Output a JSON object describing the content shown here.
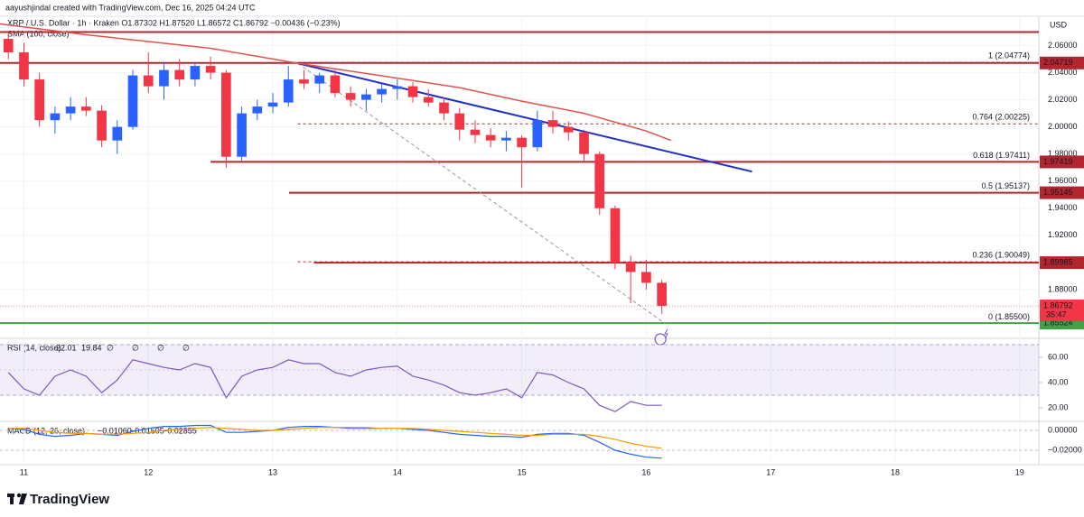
{
  "header": {
    "text": "aayushjindal created with TradingView.com, Dec 16, 2025 04:24 UTC"
  },
  "footer": {
    "brand": "TradingView"
  },
  "chart_data": [
    {
      "type": "candlestick",
      "legend": "XRP / U.S. Dollar · 1h · Kraken  O1.87302 H1.87520 L1.86572 C1.86792 −0.00436 (−0.23%)",
      "indicator": "SMA (100, close)",
      "axis_title": "USD",
      "up_color": "#2962ff",
      "down_color": "#f23645",
      "xlim": [
        10.808,
        19.154
      ],
      "xticks": [
        11,
        12,
        13,
        14,
        15,
        16,
        17,
        18,
        19
      ],
      "ylim": [
        1.846,
        2.075
      ],
      "yticks": [
        {
          "value": 1.88,
          "label": "1.88000"
        },
        {
          "value": 1.9,
          "label": "1.90000"
        },
        {
          "value": 1.92,
          "label": "1.92000"
        },
        {
          "value": 1.94,
          "label": "1.94000"
        },
        {
          "value": 1.96,
          "label": "1.96000"
        },
        {
          "value": 1.98,
          "label": "1.98000"
        },
        {
          "value": 2.0,
          "label": "2.00000"
        },
        {
          "value": 2.02,
          "label": "2.02000"
        },
        {
          "value": 2.04,
          "label": "2.04000"
        },
        {
          "value": 2.06,
          "label": "2.06000"
        }
      ],
      "x": [
        10.875,
        11,
        11.125,
        11.25,
        11.375,
        11.5,
        11.625,
        11.75,
        11.875,
        12,
        12.125,
        12.25,
        12.375,
        12.5,
        12.625,
        12.75,
        12.875,
        13,
        13.125,
        13.25,
        13.375,
        13.5,
        13.625,
        13.75,
        13.875,
        14,
        14.125,
        14.25,
        14.375,
        14.5,
        14.625,
        14.75,
        14.875,
        15,
        15.125,
        15.25,
        15.375,
        15.5,
        15.625,
        15.75,
        15.875,
        16,
        16.125
      ],
      "open": [
        2.065,
        2.055,
        2.035,
        2.005,
        2.01,
        2.015,
        2.012,
        1.99,
        2.0,
        2.038,
        2.03,
        2.042,
        2.035,
        2.045,
        2.04,
        1.978,
        2.01,
        2.015,
        2.018,
        2.035,
        2.032,
        2.038,
        2.025,
        2.02,
        2.024,
        2.028,
        2.03,
        2.022,
        2.018,
        2.01,
        1.998,
        1.994,
        1.99,
        1.992,
        1.985,
        2.005,
        2.0,
        1.996,
        1.98,
        1.94,
        1.9,
        1.893,
        1.885
      ],
      "high": [
        2.07,
        2.062,
        2.04,
        2.015,
        2.022,
        2.022,
        2.016,
        2.005,
        2.042,
        2.055,
        2.048,
        2.05,
        2.048,
        2.052,
        2.042,
        2.015,
        2.02,
        2.025,
        2.045,
        2.042,
        2.04,
        2.042,
        2.03,
        2.028,
        2.032,
        2.035,
        2.033,
        2.028,
        2.022,
        2.014,
        2.005,
        1.999,
        1.997,
        1.994,
        2.012,
        2.012,
        2.004,
        1.998,
        1.982,
        1.942,
        1.905,
        1.902,
        1.887
      ],
      "low": [
        2.05,
        2.03,
        2.0,
        1.995,
        2.005,
        2.008,
        1.985,
        1.98,
        1.998,
        2.025,
        2.02,
        2.03,
        2.03,
        2.035,
        1.97,
        1.975,
        2.005,
        2.01,
        2.015,
        2.028,
        2.025,
        2.022,
        2.015,
        2.012,
        2.018,
        2.02,
        2.018,
        2.015,
        2.005,
        1.99,
        1.988,
        1.985,
        1.982,
        1.955,
        1.982,
        1.995,
        1.99,
        1.975,
        1.935,
        1.895,
        1.87,
        1.88,
        1.862
      ],
      "close": [
        2.055,
        2.035,
        2.005,
        2.01,
        2.015,
        2.012,
        1.99,
        2.0,
        2.038,
        2.03,
        2.042,
        2.035,
        2.045,
        2.04,
        1.978,
        2.01,
        2.015,
        2.018,
        2.035,
        2.032,
        2.038,
        2.025,
        2.02,
        2.024,
        2.028,
        2.03,
        2.022,
        2.018,
        2.01,
        1.998,
        1.994,
        1.99,
        1.992,
        1.985,
        2.005,
        2.0,
        1.996,
        1.98,
        1.94,
        1.9,
        1.893,
        1.885,
        1.868
      ],
      "sma": {
        "color": "#e0524c",
        "x": [
          10.808,
          11.5,
          12.5,
          13.2,
          14,
          14.5,
          15,
          15.5,
          16,
          16.2
        ],
        "values": [
          2.076,
          2.068,
          2.058,
          2.047,
          2.036,
          2.029,
          2.019,
          2.01,
          1.997,
          1.99
        ]
      },
      "levels": [
        {
          "value": 2.07,
          "color": "#b2262f",
          "from": 10.808
        },
        {
          "value": 2.04719,
          "label": "2.04719",
          "color": "#b2262f",
          "from": 10.808
        },
        {
          "value": 1.97419,
          "label": "1.97419",
          "color": "#b2262f",
          "from": 12.5
        },
        {
          "value": 1.95145,
          "label": "1.95145",
          "color": "#b2262f",
          "from": 13.13
        },
        {
          "value": 1.89985,
          "label": "1.89985",
          "color": "#b2262f",
          "from": 13.33
        },
        {
          "value": 1.85524,
          "label": "1.85524",
          "color": "#43a047",
          "from": 10.808
        }
      ],
      "last_price": {
        "value": 1.86792,
        "label": "1.86792",
        "countdown": "35:47",
        "color": "#f23645"
      },
      "fib_levels": [
        {
          "value": 2.04774,
          "label": "1 (2.04774)",
          "color": "#5b9bd5"
        },
        {
          "value": 2.00225,
          "label": "0.764 (2.00225)",
          "color": "#8d3b2f"
        },
        {
          "value": 1.97411,
          "label": "0.618 (1.97411)",
          "color": "#2e9e5b"
        },
        {
          "value": 1.95137,
          "label": "0.5 (1.95137)",
          "color": "#333333"
        },
        {
          "value": 1.90049,
          "label": "0.236 (1.90049)",
          "color": "#c0392b"
        },
        {
          "value": 1.855,
          "label": "0 (1.85500)",
          "color": "#777777"
        }
      ],
      "fib_from": 13.2,
      "trendline": {
        "x": [
          13.2,
          16.85
        ],
        "values": [
          2.047,
          1.967
        ],
        "color": "#1e2fc8"
      },
      "diagonal": {
        "x": [
          13.2,
          16.15
        ],
        "values": [
          2.047,
          1.855
        ],
        "color": "#999999"
      }
    },
    {
      "type": "line",
      "legend": "RSI (14, close)",
      "legend_values": [
        "22.01",
        "19.84",
        "∅",
        "∅",
        "∅",
        "∅"
      ],
      "xlim": [
        10.808,
        19.154
      ],
      "ylim": [
        10.7,
        71.4
      ],
      "yticks": [
        {
          "value": 20,
          "label": "20.00"
        },
        {
          "value": 40,
          "label": "40.00"
        },
        {
          "value": 60,
          "label": "60.00"
        }
      ],
      "band": [
        30,
        70
      ],
      "midline": 50,
      "x": [
        10.875,
        11,
        11.125,
        11.25,
        11.375,
        11.5,
        11.625,
        11.75,
        11.875,
        12,
        12.125,
        12.25,
        12.375,
        12.5,
        12.625,
        12.75,
        12.875,
        13,
        13.125,
        13.25,
        13.375,
        13.5,
        13.625,
        13.75,
        13.875,
        14,
        14.125,
        14.25,
        14.375,
        14.5,
        14.625,
        14.75,
        14.875,
        15,
        15.125,
        15.25,
        15.375,
        15.5,
        15.625,
        15.75,
        15.875,
        16,
        16.125
      ],
      "series": [
        {
          "name": "RSI",
          "color": "#7e57c2",
          "values": [
            48,
            35,
            30,
            45,
            50,
            45,
            32,
            42,
            58,
            55,
            52,
            50,
            55,
            52,
            28,
            45,
            50,
            52,
            58,
            55,
            55,
            48,
            45,
            50,
            52,
            53,
            45,
            42,
            38,
            32,
            30,
            32,
            35,
            28,
            48,
            46,
            40,
            35,
            22,
            17,
            25,
            22,
            22
          ]
        }
      ]
    },
    {
      "type": "line",
      "legend": "MACD (12, 26, close)",
      "legend_values": [
        "−0.01060",
        "−0.01505",
        "−0.02855"
      ],
      "xlim": [
        10.808,
        19.154
      ],
      "ylim": [
        -0.0345,
        0.0064
      ],
      "yticks": [
        {
          "value": 0,
          "label": "0.00000"
        },
        {
          "value": -0.02,
          "label": "−0.02000"
        }
      ],
      "x": [
        10.875,
        11,
        11.125,
        11.25,
        11.375,
        11.5,
        11.625,
        11.75,
        11.875,
        12,
        12.125,
        12.25,
        12.375,
        12.5,
        12.625,
        12.75,
        12.875,
        13,
        13.125,
        13.25,
        13.375,
        13.5,
        13.625,
        13.75,
        13.875,
        14,
        14.125,
        14.25,
        14.375,
        14.5,
        14.625,
        14.75,
        14.875,
        15,
        15.125,
        15.25,
        15.375,
        15.5,
        15.625,
        15.75,
        15.875,
        16,
        16.125
      ],
      "series": [
        {
          "name": "MACD",
          "color": "#2962ff",
          "values": [
            0.002,
            0.001,
            -0.004,
            -0.006,
            -0.005,
            -0.003,
            -0.004,
            -0.005,
            -0.001,
            0.002,
            0.004,
            0.004,
            0.005,
            0.005,
            -0.002,
            -0.002,
            -0.001,
            0,
            0.003,
            0.004,
            0.004,
            0.003,
            0.002,
            0.002,
            0.002,
            0.002,
            0.001,
            0,
            -0.002,
            -0.004,
            -0.005,
            -0.006,
            -0.006,
            -0.007,
            -0.004,
            -0.003,
            -0.003,
            -0.005,
            -0.012,
            -0.02,
            -0.024,
            -0.027,
            -0.028
          ]
        },
        {
          "name": "Signal",
          "color": "#ff9800",
          "values": [
            0.002,
            0.002,
            0,
            -0.002,
            -0.003,
            -0.003,
            -0.004,
            -0.004,
            -0.003,
            -0.002,
            0,
            0.001,
            0.002,
            0.003,
            0.002,
            0.001,
            0,
            0,
            0.001,
            0.002,
            0.003,
            0.003,
            0.003,
            0.003,
            0.002,
            0.002,
            0.002,
            0.001,
            0,
            -0.001,
            -0.002,
            -0.003,
            -0.004,
            -0.005,
            -0.005,
            -0.004,
            -0.004,
            -0.004,
            -0.006,
            -0.009,
            -0.013,
            -0.016,
            -0.018
          ]
        }
      ]
    }
  ]
}
